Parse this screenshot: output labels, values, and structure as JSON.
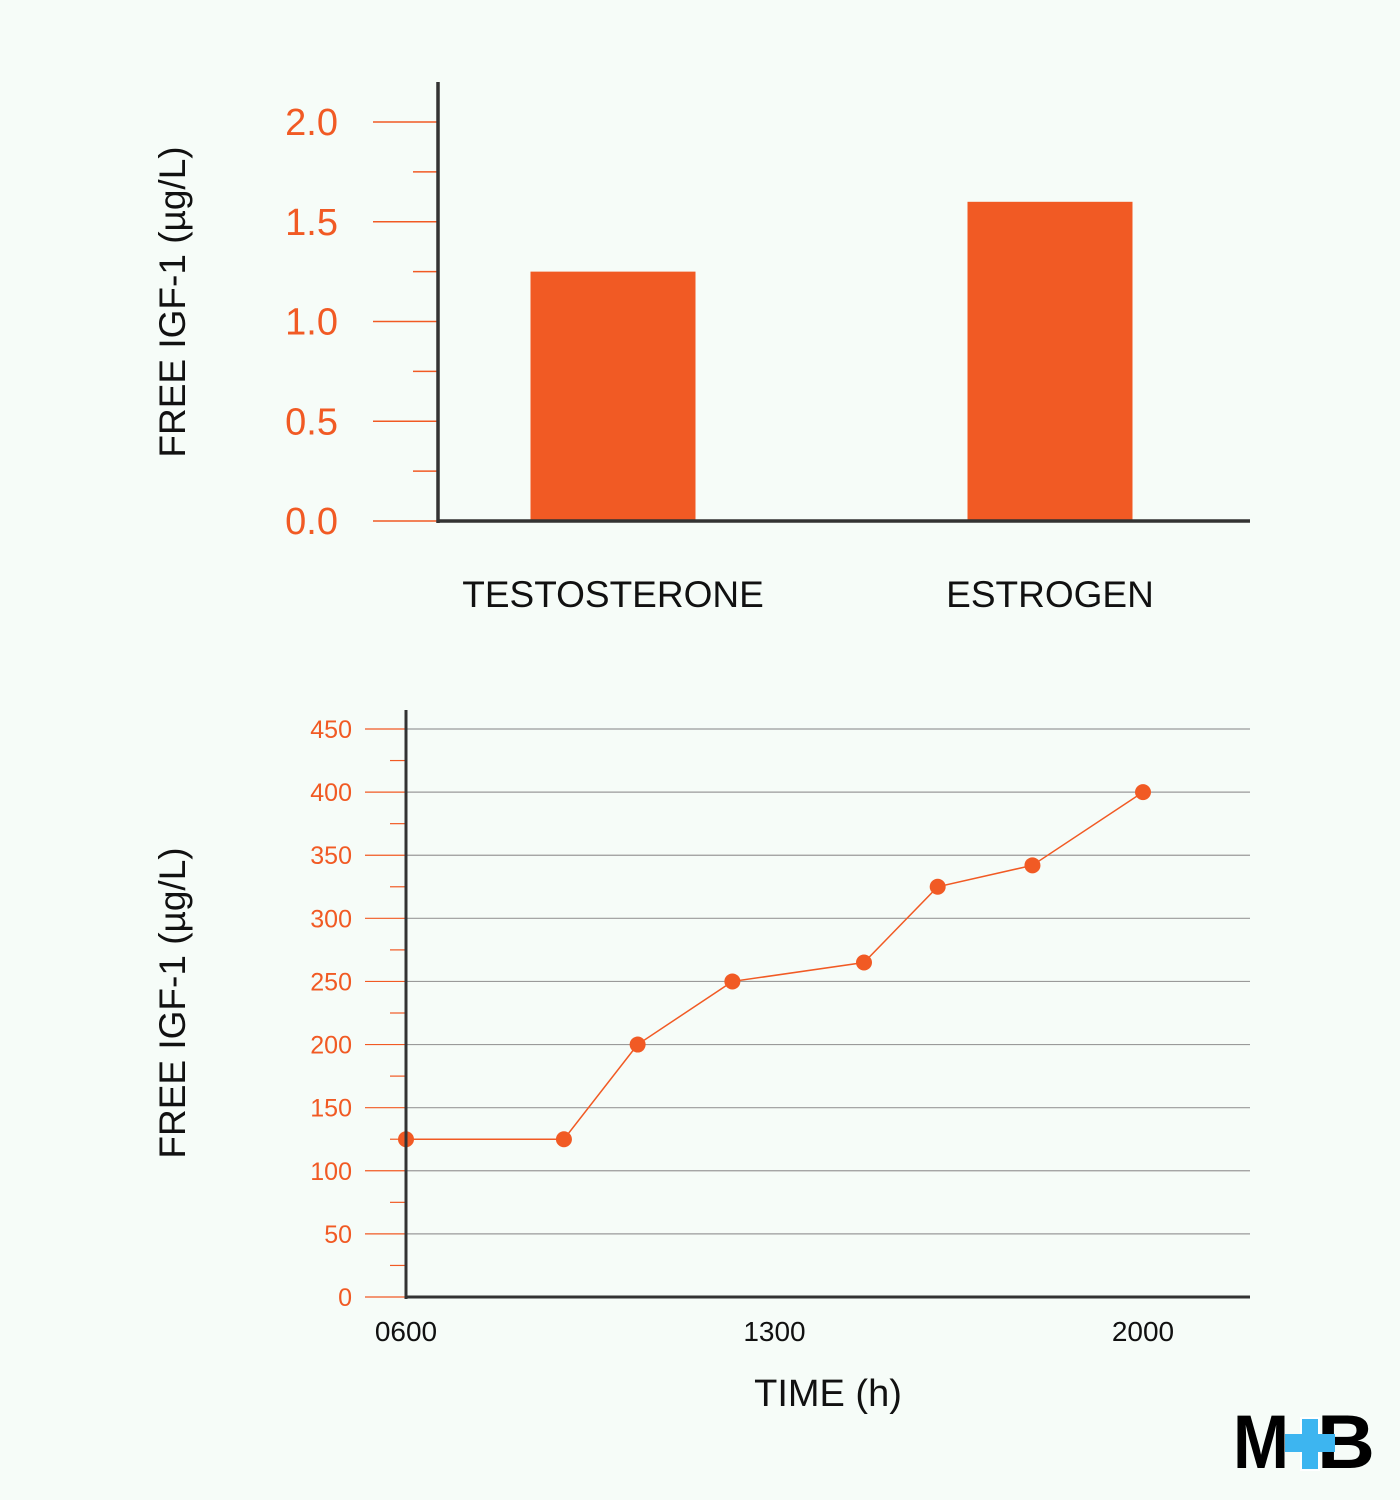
{
  "colors": {
    "accent": "#f15a24",
    "axis": "#333333",
    "grid": "#9a9a9a",
    "background": "#f6fcf8",
    "logo_cross": "#3db5f0"
  },
  "logo": {
    "text": "M+B"
  },
  "chart_data": [
    {
      "type": "bar",
      "ylabel": "FREE IGF-1  (µg/L)",
      "xlabel": "",
      "categories": [
        "TESTOSTERONE",
        "ESTROGEN"
      ],
      "values": [
        1.25,
        1.6
      ],
      "ylim": [
        0,
        2.0
      ],
      "yticks": [
        "0.0",
        "0.5",
        "1.0",
        "1.5",
        "2.0"
      ],
      "ytick_values": [
        0,
        0.5,
        1.0,
        1.5,
        2.0
      ],
      "grid": false
    },
    {
      "type": "line",
      "ylabel": "FREE IGF-1  (µg/L)",
      "xlabel": "TIME (h)",
      "x": [
        6,
        9,
        10.4,
        12.2,
        14.7,
        16.1,
        17.9,
        20
      ],
      "y": [
        125,
        125,
        200,
        250,
        265,
        325,
        342,
        400
      ],
      "xlim": [
        6,
        22
      ],
      "ylim": [
        0,
        450
      ],
      "xticks": [
        "0600",
        "1300",
        "2000"
      ],
      "xtick_values": [
        6,
        13,
        20
      ],
      "yticks": [
        "0",
        "50",
        "100",
        "150",
        "200",
        "250",
        "300",
        "350",
        "400",
        "450"
      ],
      "ytick_values": [
        0,
        50,
        100,
        150,
        200,
        250,
        300,
        350,
        400,
        450
      ],
      "grid": true
    }
  ]
}
